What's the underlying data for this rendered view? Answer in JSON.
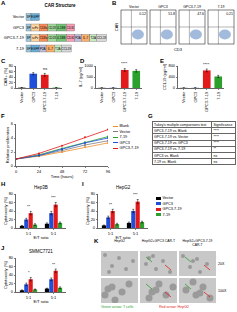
{
  "chart_data": [
    {
      "panel": "C",
      "type": "bar",
      "categories": [
        "Vector",
        "GPC3",
        "GPC3-7-19",
        "7-19"
      ],
      "values": [
        1.2,
        52,
        48,
        1.5
      ],
      "errors": [
        0.3,
        4,
        5,
        0.4
      ],
      "colors": [
        "#000000",
        "#1f4fd8",
        "#e31a1c",
        "#2ca02c"
      ],
      "ylabel": "CAR+ (%)",
      "ylim": [
        0,
        80
      ],
      "yticks": [
        0,
        20,
        40,
        60,
        80
      ],
      "annotations": [
        {
          "text": "ns",
          "category": "GPC3-7-19"
        }
      ]
    },
    {
      "panel": "D",
      "type": "bar",
      "categories": [
        "Vector",
        "GPC3",
        "GPC3-7-19",
        "7-19"
      ],
      "values": [
        8,
        10,
        820,
        780
      ],
      "errors": [
        3,
        4,
        60,
        55
      ],
      "colors": [
        "#000000",
        "#1f4fd8",
        "#e31a1c",
        "#2ca02c"
      ],
      "ylabel": "IL-7 (pg/ml)",
      "ylim": [
        0,
        1000
      ],
      "yticks": [
        0,
        500,
        1000
      ],
      "annotations": [
        {
          "text": "****",
          "category": "GPC3-7-19"
        }
      ]
    },
    {
      "panel": "E",
      "type": "bar",
      "categories": [
        "Vector",
        "GPC3",
        "GPC3-7-19",
        "7-19"
      ],
      "values": [
        5,
        6,
        640,
        420
      ],
      "errors": [
        2,
        2,
        50,
        40
      ],
      "colors": [
        "#000000",
        "#1f4fd8",
        "#e31a1c",
        "#2ca02c"
      ],
      "ylabel": "CCL19 (pg/ml)",
      "ylim": [
        0,
        800
      ],
      "yticks": [
        0,
        400,
        800
      ],
      "annotations": [
        {
          "text": "****",
          "category": "GPC3-7-19"
        }
      ]
    },
    {
      "panel": "F",
      "type": "line",
      "x": [
        0,
        24,
        48,
        72,
        96
      ],
      "xlim": [
        0,
        96
      ],
      "xticks": [
        0,
        24,
        48,
        72,
        96
      ],
      "xlabel": "Time (hours)",
      "ylabel": "Relative proliferation",
      "ylim": [
        0,
        6
      ],
      "yticks": [
        0,
        2,
        4,
        6
      ],
      "marker": "circle",
      "legend": "right",
      "series": [
        {
          "name": "Blank",
          "color": "#f28e2b",
          "values": [
            1,
            1.4,
            2.0,
            2.7,
            3.3
          ]
        },
        {
          "name": "Vector",
          "color": "#7f7f7f",
          "values": [
            1,
            1.5,
            2.2,
            3.0,
            3.6
          ]
        },
        {
          "name": "7-19",
          "color": "#2ca02c",
          "values": [
            1,
            1.6,
            2.5,
            3.4,
            4.2
          ]
        },
        {
          "name": "GPC3",
          "color": "#1f4fd8",
          "values": [
            1,
            1.5,
            2.4,
            3.3,
            4.0
          ]
        },
        {
          "name": "GPC3-7-19",
          "color": "#e31a1c",
          "values": [
            1,
            1.8,
            2.9,
            4.1,
            5.2
          ]
        }
      ]
    },
    {
      "panel": "H",
      "type": "bar",
      "title": "Hep3B",
      "categories": [
        "1:1",
        "5:1"
      ],
      "xlabel": "E/T ratio",
      "ylabel": "Cytotoxicity (%)",
      "ylim": [
        0,
        80
      ],
      "yticks": [
        0,
        20,
        40,
        60,
        80
      ],
      "legend": "right",
      "series": [
        {
          "name": "Vector",
          "color": "#000000",
          "values": [
            5,
            10
          ],
          "errors": [
            1,
            2
          ]
        },
        {
          "name": "GPC3",
          "color": "#1f4fd8",
          "values": [
            20,
            35
          ],
          "errors": [
            3,
            4
          ]
        },
        {
          "name": "GPC3-7-19",
          "color": "#e31a1c",
          "values": [
            35,
            55
          ],
          "errors": [
            4,
            5
          ]
        },
        {
          "name": "7-19",
          "color": "#2ca02c",
          "values": [
            8,
            12
          ],
          "errors": [
            2,
            2
          ]
        }
      ],
      "annotations": [
        {
          "text": "**",
          "category": "1:1"
        },
        {
          "text": "***",
          "category": "5:1"
        }
      ]
    },
    {
      "panel": "I",
      "type": "bar",
      "title": "HepG2",
      "categories": [
        "1:1",
        "5:1"
      ],
      "xlabel": "E/T ratio",
      "ylabel": "Cytotoxicity (%)",
      "ylim": [
        0,
        80
      ],
      "yticks": [
        0,
        20,
        40,
        60,
        80
      ],
      "series": [
        {
          "name": "Vector",
          "color": "#000000",
          "values": [
            6,
            12
          ],
          "errors": [
            1,
            2
          ]
        },
        {
          "name": "GPC3",
          "color": "#1f4fd8",
          "values": [
            25,
            40
          ],
          "errors": [
            3,
            4
          ]
        },
        {
          "name": "GPC3-7-19",
          "color": "#e31a1c",
          "values": [
            40,
            62
          ],
          "errors": [
            4,
            5
          ]
        },
        {
          "name": "7-19",
          "color": "#2ca02c",
          "values": [
            9,
            14
          ],
          "errors": [
            2,
            2
          ]
        }
      ],
      "annotations": [
        {
          "text": "**",
          "category": "1:1"
        },
        {
          "text": "***",
          "category": "5:1"
        }
      ]
    },
    {
      "panel": "J",
      "type": "bar",
      "title": "SMMC7721",
      "categories": [
        "1:1",
        "5:1"
      ],
      "xlabel": "E/T ratio",
      "ylabel": "Cytotoxicity (%)",
      "ylim": [
        0,
        80
      ],
      "yticks": [
        0,
        20,
        40,
        60,
        80
      ],
      "series": [
        {
          "name": "Vector",
          "color": "#000000",
          "values": [
            4,
            8
          ],
          "errors": [
            1,
            1
          ]
        },
        {
          "name": "GPC3",
          "color": "#1f4fd8",
          "values": [
            18,
            30
          ],
          "errors": [
            3,
            3
          ]
        },
        {
          "name": "GPC3-7-19",
          "color": "#e31a1c",
          "values": [
            30,
            50
          ],
          "errors": [
            4,
            4
          ]
        },
        {
          "name": "7-19",
          "color": "#2ca02c",
          "values": [
            6,
            10
          ],
          "errors": [
            1,
            2
          ]
        }
      ],
      "annotations": [
        {
          "text": "*",
          "category": "1:1"
        },
        {
          "text": "**",
          "category": "5:1"
        }
      ]
    }
  ],
  "diagram": {
    "panel": "A",
    "title": "CAR Structure",
    "rows": [
      {
        "label": "Vector",
        "segments": [
          "SP",
          "EGFP"
        ]
      },
      {
        "label": "GPC3",
        "segments": [
          "SP",
          "scFv",
          "CD8α",
          "CD28",
          "4-1BB",
          "CD3ζ"
        ]
      },
      {
        "label": "GPC3-7-19",
        "segments": [
          "SP",
          "scFv",
          "CD8α",
          "CD28",
          "4-1BB",
          "CD3ζ",
          "P2A",
          "IL-7",
          "T2A",
          "CCL19"
        ]
      },
      {
        "label": "7-19",
        "segments": [
          "SP",
          "EGFP",
          "P2A",
          "IL-7",
          "T2A",
          "CCL19"
        ]
      }
    ]
  },
  "flow": {
    "panel": "B",
    "xlabel": "CD3",
    "ylabel": "CAR",
    "plots": [
      {
        "title": "Vector",
        "percent": 0.12
      },
      {
        "title": "GPC3",
        "percent": 51.8
      },
      {
        "title": "GPC3-7-19",
        "percent": 47.6
      },
      {
        "title": "7-19",
        "percent": 0.21
      }
    ]
  },
  "table": {
    "panel": "G",
    "header": [
      "Tukey's multiple comparisons test",
      "Significance"
    ],
    "rows": [
      [
        "GPC3-7-19 vs. Blank",
        "****"
      ],
      [
        "GPC3-7-19 vs. Vector",
        "****"
      ],
      [
        "GPC3-7-19 vs. GPC3",
        "****"
      ],
      [
        "GPC3-7-19 vs. 7-19",
        "**"
      ],
      [
        "GPC3 vs. Blank",
        "ns"
      ],
      [
        "7-19 vs. Blank",
        "ns"
      ]
    ]
  },
  "images": {
    "panel": "K",
    "columns": [
      "HepG2",
      "HepG2+GPC3 CAR-T",
      "HepG2+GPC3-7-19 CAR-T"
    ],
    "rows": [
      "20X",
      "100X"
    ],
    "captions": [
      {
        "text": "Green arrow: T cells",
        "color": "#2ca02c"
      },
      {
        "text": "Red arrow: HepG2",
        "color": "#e31a1c"
      }
    ]
  }
}
